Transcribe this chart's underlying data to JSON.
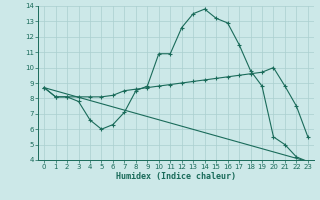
{
  "xlabel": "Humidex (Indice chaleur)",
  "bg_color": "#cce8e8",
  "line_color": "#1a6b5a",
  "grid_color": "#aacfcf",
  "xlim_min": -0.5,
  "xlim_max": 23.5,
  "ylim_min": 4,
  "ylim_max": 14,
  "xticks": [
    0,
    1,
    2,
    3,
    4,
    5,
    6,
    7,
    8,
    9,
    10,
    11,
    12,
    13,
    14,
    15,
    16,
    17,
    18,
    19,
    20,
    21,
    22,
    23
  ],
  "yticks": [
    4,
    5,
    6,
    7,
    8,
    9,
    10,
    11,
    12,
    13,
    14
  ],
  "curve1_x": [
    0,
    1,
    2,
    3,
    4,
    5,
    6,
    7,
    8,
    9,
    10,
    11,
    12,
    13,
    14,
    15,
    16,
    17,
    18,
    19,
    20,
    21,
    22,
    23
  ],
  "curve1_y": [
    8.7,
    8.1,
    8.1,
    7.8,
    6.6,
    6.0,
    6.3,
    7.1,
    8.5,
    8.8,
    10.9,
    10.9,
    12.6,
    13.5,
    13.8,
    13.2,
    12.9,
    11.5,
    9.8,
    8.8,
    5.5,
    5.0,
    4.2,
    3.9
  ],
  "curve2_x": [
    0,
    1,
    2,
    3,
    4,
    5,
    6,
    7,
    8,
    9,
    10,
    11,
    12,
    13,
    14,
    15,
    16,
    17,
    18,
    19,
    20,
    21,
    22,
    23
  ],
  "curve2_y": [
    8.7,
    8.1,
    8.1,
    8.1,
    8.1,
    8.1,
    8.2,
    8.5,
    8.6,
    8.7,
    8.8,
    8.9,
    9.0,
    9.1,
    9.2,
    9.3,
    9.4,
    9.5,
    9.6,
    9.7,
    10.0,
    8.8,
    7.5,
    5.5
  ],
  "curve3_x": [
    0,
    23
  ],
  "curve3_y": [
    8.7,
    3.9
  ]
}
